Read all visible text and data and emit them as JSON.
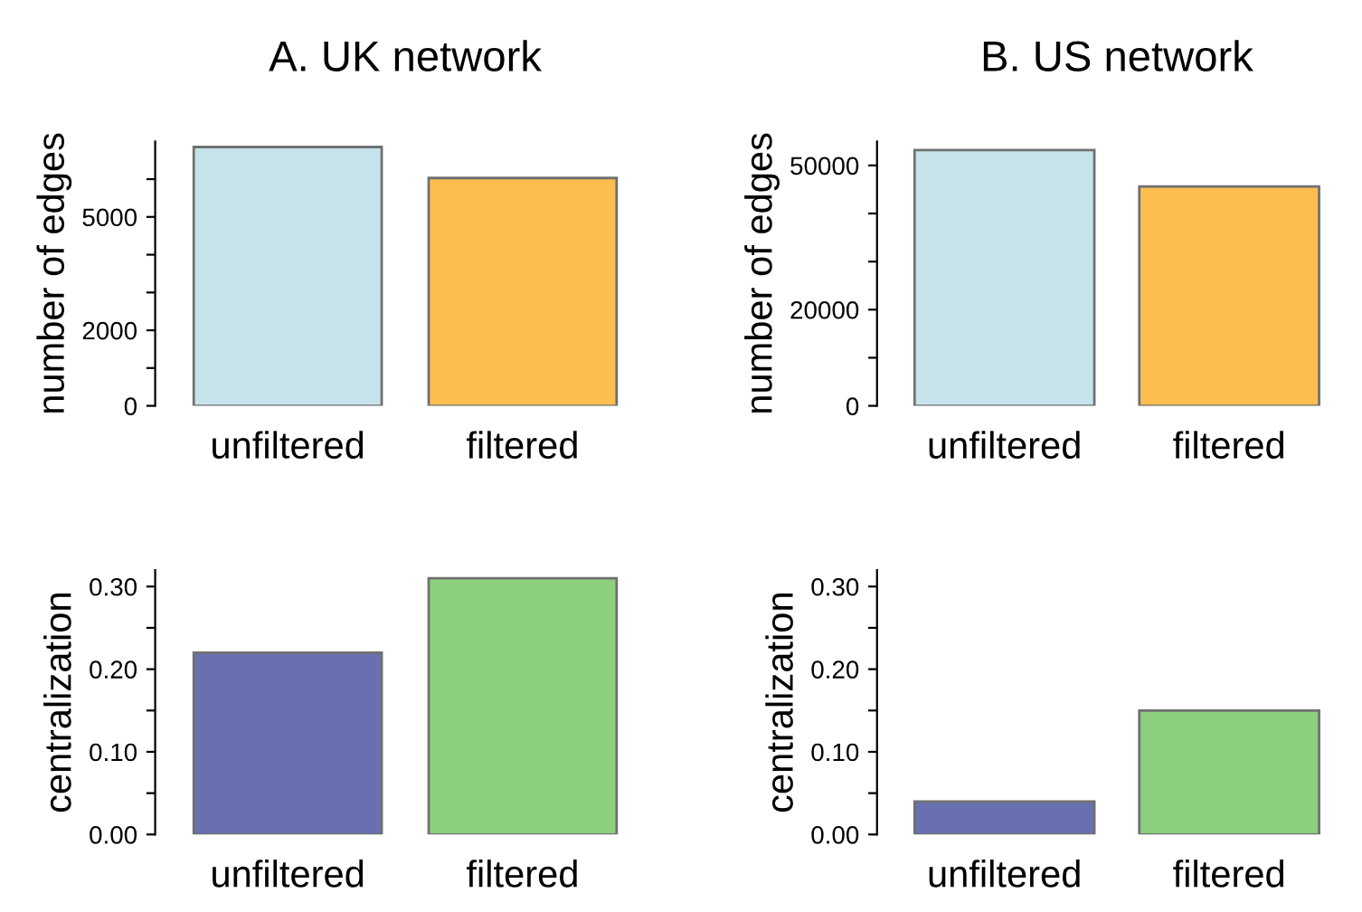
{
  "chart_data": [
    {
      "type": "bar",
      "title": "A. UK network",
      "ylabel": "number of edges",
      "categories": [
        "unfiltered",
        "filtered"
      ],
      "values": [
        6850,
        6030
      ],
      "colors": [
        "#c6e3ec",
        "#fdbe4f"
      ],
      "ylim": [
        0,
        7000
      ],
      "yticks": [
        0,
        {
          "value": 1000,
          "label": null
        },
        2000,
        {
          "value": 3000,
          "label": null
        },
        {
          "value": 4000,
          "label": null
        },
        5000,
        {
          "value": 6000,
          "label": null
        }
      ],
      "grid": false
    },
    {
      "type": "bar",
      "title": "B. US network",
      "ylabel": "number of edges",
      "categories": [
        "unfiltered",
        "filtered"
      ],
      "values": [
        53200,
        45600
      ],
      "colors": [
        "#c6e3ec",
        "#fdbe4f"
      ],
      "ylim": [
        0,
        55000
      ],
      "yticks": [
        0,
        {
          "value": 10000,
          "label": null
        },
        20000,
        {
          "value": 30000,
          "label": null
        },
        {
          "value": 40000,
          "label": null
        },
        50000
      ],
      "grid": false
    },
    {
      "type": "bar",
      "ylabel": "centralization",
      "categories": [
        "unfiltered",
        "filtered"
      ],
      "values": [
        0.22,
        0.31
      ],
      "colors": [
        "#6870b0",
        "#8ccf7e"
      ],
      "ylim": [
        0,
        0.32
      ],
      "yticks": [
        {
          "value": 0,
          "label": "0.00"
        },
        {
          "value": 0.05,
          "label": null
        },
        {
          "value": 0.1,
          "label": "0.10"
        },
        {
          "value": 0.15,
          "label": null
        },
        {
          "value": 0.2,
          "label": "0.20"
        },
        {
          "value": 0.25,
          "label": null
        },
        {
          "value": 0.3,
          "label": "0.30"
        }
      ],
      "grid": false
    },
    {
      "type": "bar",
      "ylabel": "centralization",
      "categories": [
        "unfiltered",
        "filtered"
      ],
      "values": [
        0.04,
        0.15
      ],
      "colors": [
        "#6870b0",
        "#8ccf7e"
      ],
      "ylim": [
        0,
        0.32
      ],
      "yticks": [
        {
          "value": 0,
          "label": "0.00"
        },
        {
          "value": 0.05,
          "label": null
        },
        {
          "value": 0.1,
          "label": "0.10"
        },
        {
          "value": 0.15,
          "label": null
        },
        {
          "value": 0.2,
          "label": "0.20"
        },
        {
          "value": 0.25,
          "label": null
        },
        {
          "value": 0.3,
          "label": "0.30"
        }
      ],
      "grid": false
    }
  ]
}
